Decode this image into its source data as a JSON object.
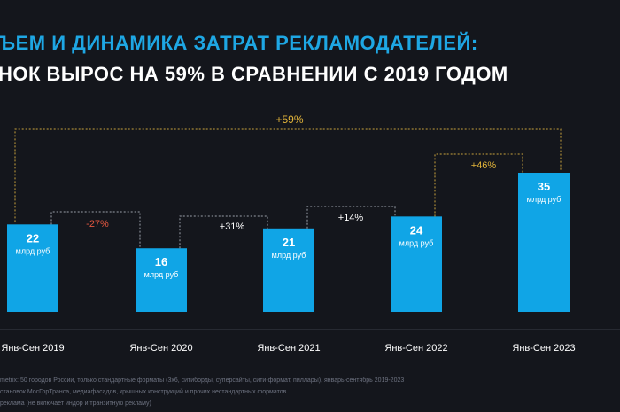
{
  "title_line1": "ЪЕМ И ДИНАМИКА ЗАТРАТ РЕКЛАМОДАТЕЛЕЙ:",
  "title_line2": "НОК ВЫРОС НА 59% В СРАВНЕНИИ С 2019 ГОДОМ",
  "footnotes": [
    "metrix: 50 городов России, только стандартные форматы (3х6, ситиборды, суперсайты, сити-формат, пиллары), январь-сентябрь 2019-2023",
    "становок МосГорТранса, медиафасадов, крышных конструкций и прочих нестандартных форматов",
    "рекламa (не включает индор и транзитную рекламу)"
  ],
  "colors": {
    "bar": "#10a5e6",
    "positive_change": "#ffffff",
    "negative_change": "#e0563f",
    "total_change": "#e2b43a",
    "bracket_white": "#9aa0aa",
    "bracket_total": "#c9a23c",
    "title_accent": "#1ea7e4"
  },
  "chart_data": {
    "type": "bar",
    "categories": [
      "Янв-Сен 2019",
      "Янв-Сен 2020",
      "Янв-Сен 2021",
      "Янв-Сен 2022",
      "Янв-Сен 2023"
    ],
    "values": [
      22,
      16,
      21,
      24,
      35
    ],
    "unit": "млрд руб",
    "changes": [
      {
        "from": 0,
        "to": 1,
        "label": "-27%",
        "kind": "negative"
      },
      {
        "from": 1,
        "to": 2,
        "label": "+31%",
        "kind": "positive"
      },
      {
        "from": 2,
        "to": 3,
        "label": "+14%",
        "kind": "positive"
      },
      {
        "from": 3,
        "to": 4,
        "label": "+46%",
        "kind": "total"
      },
      {
        "from": 0,
        "to": 4,
        "label": "+59%",
        "kind": "total"
      }
    ]
  }
}
